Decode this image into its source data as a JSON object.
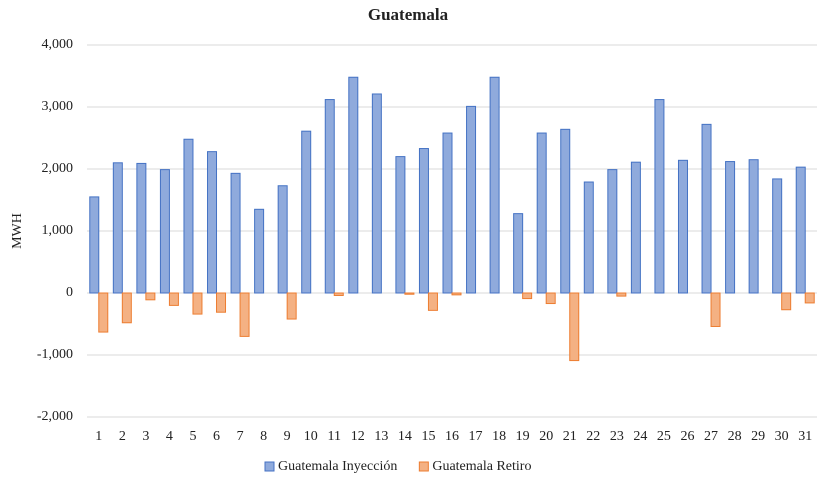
{
  "chart_data": {
    "type": "bar",
    "title": "Guatemala",
    "y_label": "MWH",
    "categories": [
      "1",
      "2",
      "3",
      "4",
      "5",
      "6",
      "7",
      "8",
      "9",
      "10",
      "11",
      "12",
      "13",
      "14",
      "15",
      "16",
      "17",
      "18",
      "19",
      "20",
      "21",
      "22",
      "23",
      "24",
      "25",
      "26",
      "27",
      "28",
      "29",
      "30",
      "31"
    ],
    "series": [
      {
        "name": "Guatemala Inyección",
        "color": "#8faadc",
        "edge": "#4472c4",
        "values": [
          1550,
          2100,
          2090,
          1990,
          2480,
          2280,
          1930,
          1350,
          1730,
          2610,
          3120,
          3480,
          3210,
          2200,
          2330,
          2580,
          3010,
          3480,
          1280,
          2580,
          2640,
          1790,
          1990,
          2110,
          3120,
          2140,
          2720,
          2120,
          2150,
          1840,
          2030
        ]
      },
      {
        "name": "Guatemala Retiro",
        "color": "#f4b183",
        "edge": "#ed7d31",
        "values": [
          -630,
          -480,
          -110,
          -200,
          -340,
          -310,
          -700,
          0,
          -420,
          0,
          -40,
          0,
          0,
          -20,
          -280,
          -30,
          0,
          0,
          -90,
          -170,
          -1090,
          0,
          -50,
          0,
          0,
          0,
          -540,
          0,
          0,
          -270,
          -160
        ]
      }
    ],
    "ylim": [
      -2000,
      4000
    ],
    "yticks": [
      {
        "value": -2000,
        "label": "-2,000"
      },
      {
        "value": -1000,
        "label": "-1,000"
      },
      0,
      {
        "value": 1000,
        "label": "1,000"
      },
      {
        "value": 2000,
        "label": "2,000"
      },
      {
        "value": 3000,
        "label": "3,000"
      },
      {
        "value": 4000,
        "label": "4,000"
      }
    ],
    "grid": true,
    "legend": "bottom"
  }
}
